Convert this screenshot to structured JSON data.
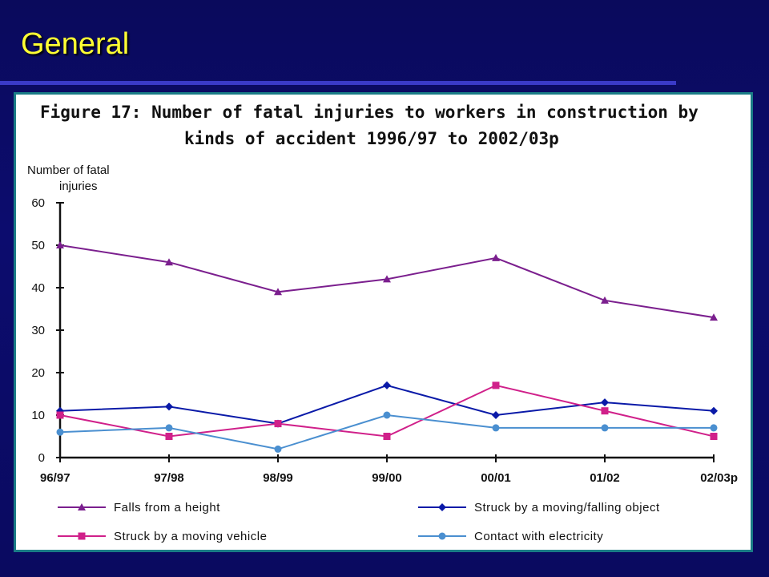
{
  "slide": {
    "title": "General"
  },
  "colors": {
    "background": "#0a0a5c",
    "title": "#ffff33",
    "rule": "#3a3ac8",
    "panel_border": "#1a7c86"
  },
  "chart_data": {
    "type": "line",
    "title": "Figure 17:  Number of fatal injuries to workers in construction by",
    "subtitle": "kinds of accident 1996/97 to 2002/03p",
    "ylabel_line1": "Number of fatal",
    "ylabel_line2": "injuries",
    "xlabel": "",
    "categories": [
      "96/97",
      "97/98",
      "98/99",
      "99/00",
      "00/01",
      "01/02",
      "02/03p"
    ],
    "ylim": [
      0,
      60
    ],
    "yticks": [
      0,
      10,
      20,
      30,
      40,
      50,
      60
    ],
    "grid": false,
    "legend_position": "bottom",
    "series": [
      {
        "name": "Falls from a height",
        "color": "#7b1f8e",
        "marker": "triangle",
        "values": [
          50,
          46,
          39,
          42,
          47,
          37,
          33
        ]
      },
      {
        "name": "Struck by a moving/falling object",
        "color": "#0a1aa8",
        "marker": "diamond",
        "values": [
          11,
          12,
          8,
          17,
          10,
          13,
          11
        ]
      },
      {
        "name": "Struck by a moving vehicle",
        "color": "#d0208a",
        "marker": "square",
        "values": [
          10,
          5,
          8,
          5,
          17,
          11,
          5
        ]
      },
      {
        "name": "Contact with electricity",
        "color": "#4a8fd0",
        "marker": "circle",
        "values": [
          6,
          7,
          2,
          10,
          7,
          7,
          7
        ]
      }
    ]
  }
}
